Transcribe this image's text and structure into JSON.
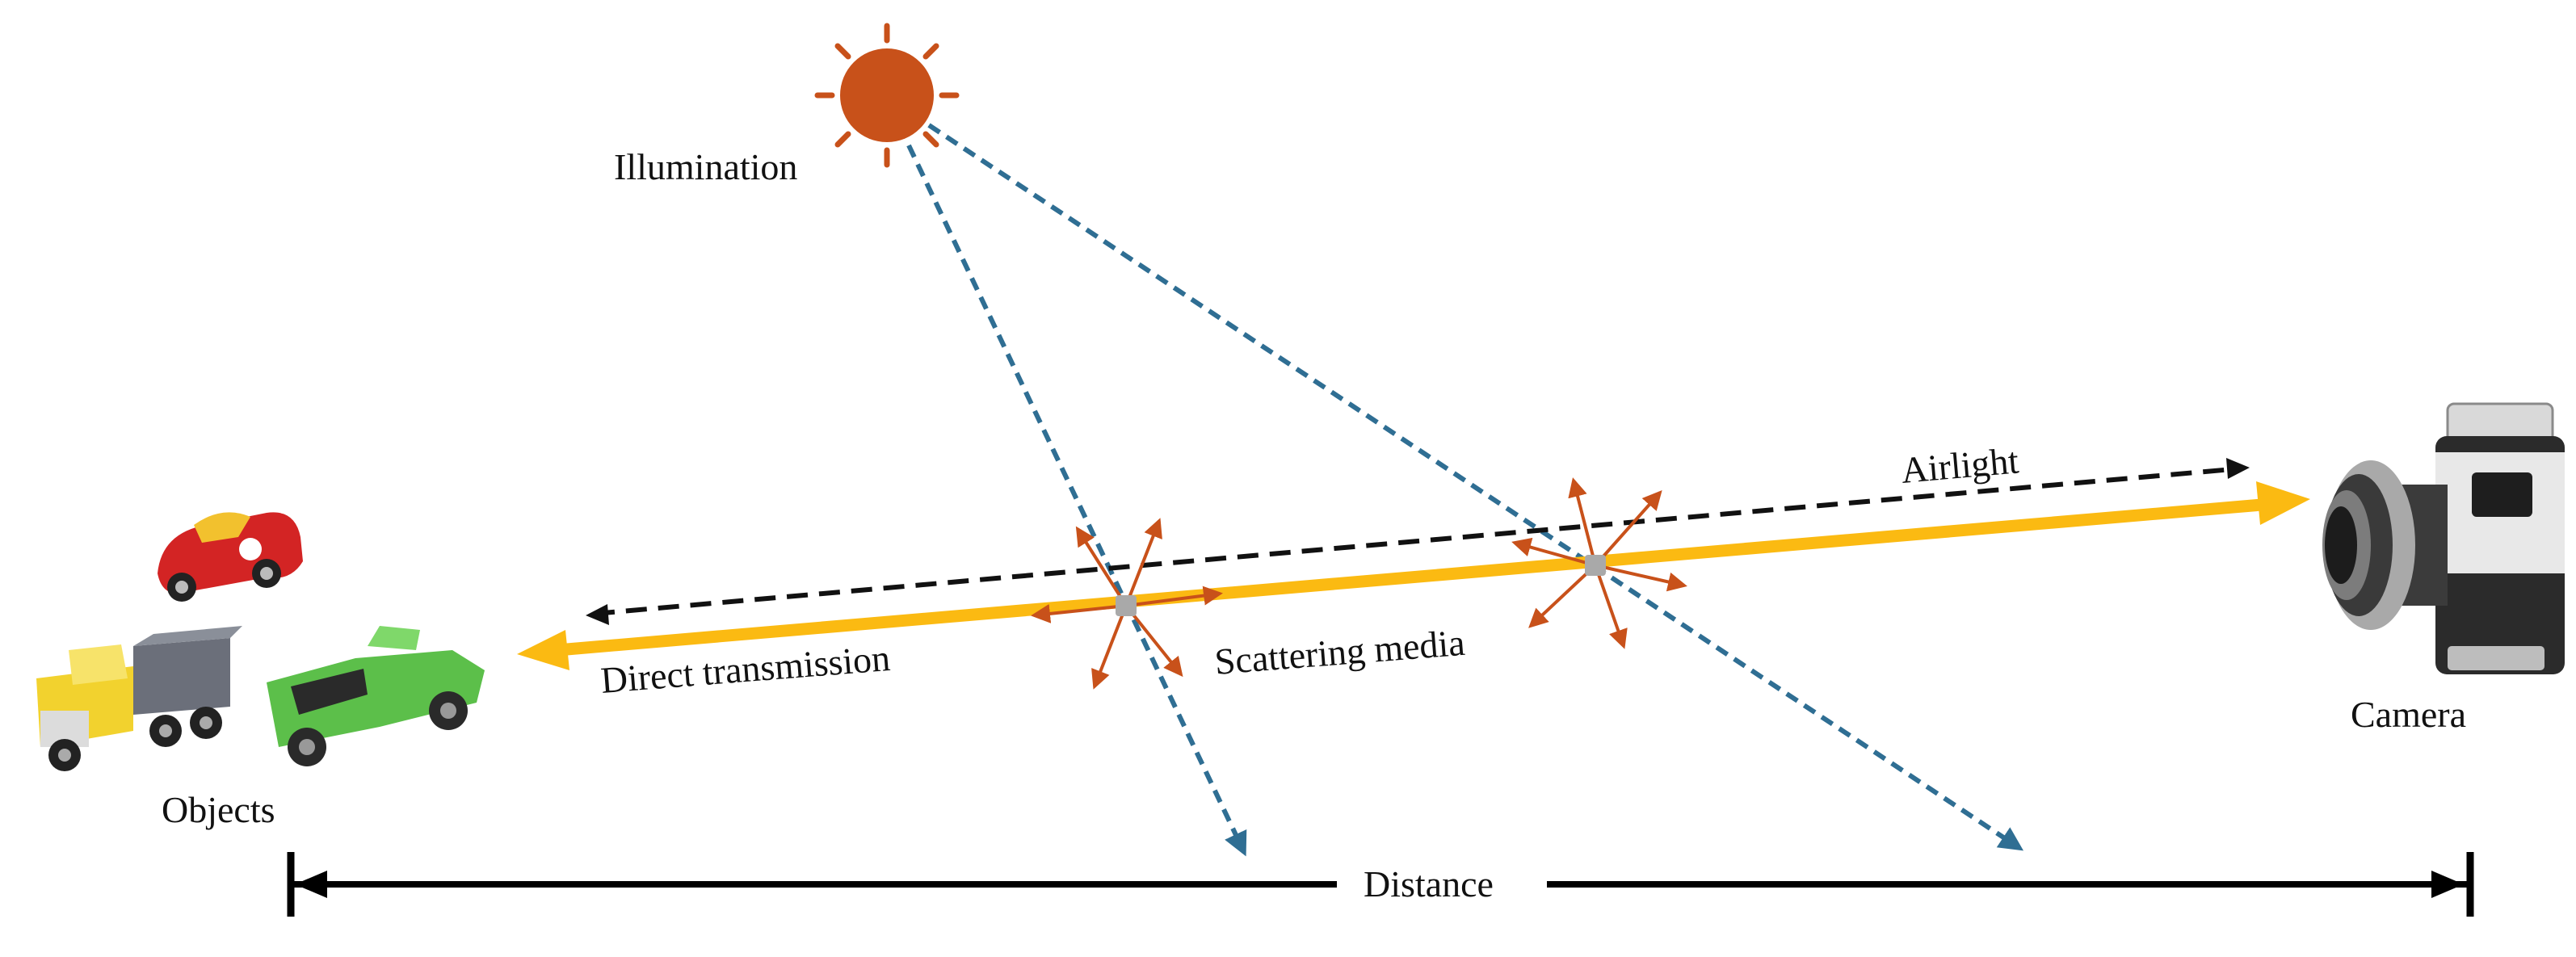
{
  "diagram": {
    "labels": {
      "illumination": "Illumination",
      "airlight": "Airlight",
      "direct_transmission": "Direct transmission",
      "scattering_media": "Scattering media",
      "objects": "Objects",
      "camera": "Camera",
      "distance": "Distance"
    },
    "colors": {
      "sun": "#C8511A",
      "scatter_arrows": "#C8511A",
      "illumination_rays": "#2F6E93",
      "transmission_beam": "#FBBA12",
      "airlight_line": "#111111",
      "distance_line": "#000000",
      "particle": "#A9A9A9"
    },
    "icons": {
      "sun": "sun-icon",
      "camera": "camera-icon",
      "red_car": "red-car-icon",
      "dump_truck": "dump-truck-icon",
      "green_pickup": "green-pickup-icon",
      "particle": "particle-icon"
    }
  }
}
